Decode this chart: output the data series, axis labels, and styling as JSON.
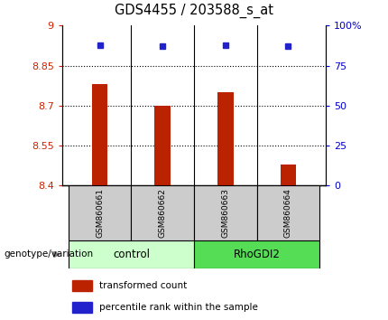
{
  "title": "GDS4455 / 203588_s_at",
  "samples": [
    "GSM860661",
    "GSM860662",
    "GSM860663",
    "GSM860664"
  ],
  "bar_values": [
    8.78,
    8.7,
    8.75,
    8.48
  ],
  "dot_values": [
    88,
    87,
    88,
    87
  ],
  "groups": [
    "control",
    "control",
    "RhoGDI2",
    "RhoGDI2"
  ],
  "group_colors": {
    "control": "#ccffcc",
    "RhoGDI2": "#55dd55"
  },
  "bar_color": "#bb2200",
  "dot_color": "#2222cc",
  "ylim_left": [
    8.4,
    9.0
  ],
  "ylim_right": [
    0,
    100
  ],
  "yticks_left": [
    8.4,
    8.55,
    8.7,
    8.85,
    9.0
  ],
  "yticks_right": [
    0,
    25,
    50,
    75,
    100
  ],
  "ytick_labels_left": [
    "8.4",
    "8.55",
    "8.7",
    "8.85",
    "9"
  ],
  "ytick_labels_right": [
    "0",
    "25",
    "50",
    "75",
    "100%"
  ],
  "hlines": [
    8.55,
    8.7,
    8.85
  ],
  "legend_bar_label": "transformed count",
  "legend_dot_label": "percentile rank within the sample",
  "group_label": "genotype/variation",
  "background_color": "#ffffff",
  "plot_bg_color": "#ffffff",
  "label_box_color": "#cccccc"
}
